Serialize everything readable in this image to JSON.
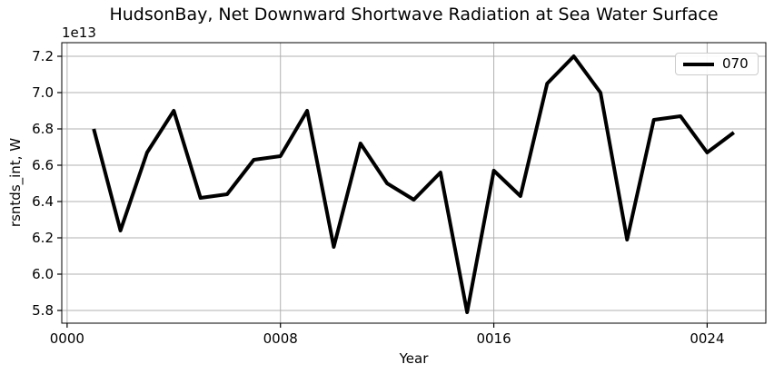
{
  "chart_data": {
    "type": "line",
    "title": "HudsonBay, Net Downward Shortwave Radiation at Sea Water Surface",
    "xlabel": "Year",
    "ylabel": "rsntds_int, W",
    "y_offset_text": "1e13",
    "x": [
      1,
      2,
      3,
      4,
      5,
      6,
      7,
      8,
      9,
      10,
      11,
      12,
      13,
      14,
      15,
      16,
      17,
      18,
      19,
      20,
      21,
      22,
      23,
      24,
      25
    ],
    "series": [
      {
        "name": "070",
        "color": "#000000",
        "linewidth": 4,
        "values": [
          6.8,
          6.24,
          6.67,
          6.9,
          6.42,
          6.44,
          6.63,
          6.65,
          6.9,
          6.15,
          6.72,
          6.5,
          6.41,
          6.56,
          5.79,
          6.57,
          6.43,
          7.05,
          7.2,
          7.0,
          6.19,
          6.85,
          6.87,
          6.67,
          6.78
        ]
      }
    ],
    "xlim": [
      -0.2,
      26.2
    ],
    "ylim": [
      5.73,
      7.275
    ],
    "xticks": {
      "values": [
        0,
        8,
        16,
        24
      ],
      "labels": [
        "0000",
        "0008",
        "0016",
        "0024"
      ]
    },
    "yticks": {
      "values": [
        5.8,
        6.0,
        6.2,
        6.4,
        6.6,
        6.8,
        7.0,
        7.2
      ],
      "labels": [
        "5.8",
        "6.0",
        "6.2",
        "6.4",
        "6.6",
        "6.8",
        "7.0",
        "7.2"
      ]
    },
    "grid": true,
    "grid_color": "#b0b0b0",
    "spine_color": "#000000",
    "background": "#ffffff",
    "legend_position": "upper right"
  }
}
